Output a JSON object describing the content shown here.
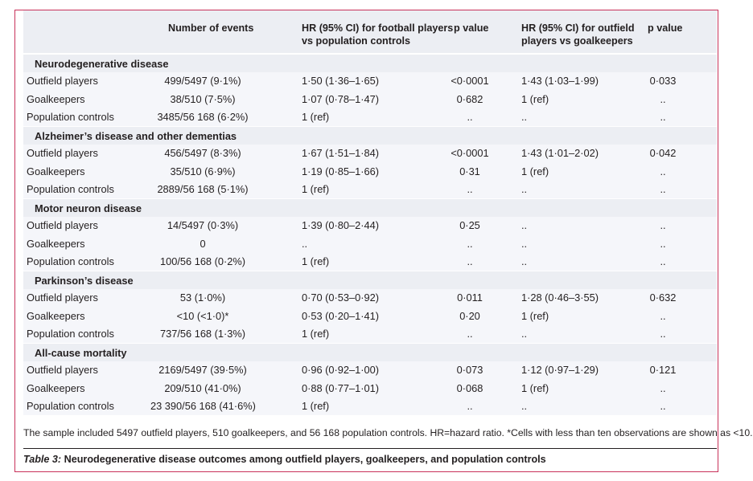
{
  "header": {
    "events": "Number of events",
    "hr_football_line1": "HR (95% CI) for football players",
    "hr_football_line2": "vs population controls",
    "p_value_1": "p value",
    "hr_outfield_line1": "HR (95% CI) for outfield",
    "hr_outfield_line2": "players vs goalkeepers",
    "p_value_2": "p value"
  },
  "groups": [
    {
      "title": "Neurodegenerative disease",
      "rows": [
        {
          "label": "Outfield players",
          "events": "499/5497 (9·1%)",
          "hr1": "1·50 (1·36–1·65)",
          "p1": "<0·0001",
          "hr2": "1·43 (1·03–1·99)",
          "p2": "0·033"
        },
        {
          "label": "Goalkeepers",
          "events": "38/510 (7·5%)",
          "hr1": "1·07 (0·78–1·47)",
          "p1": "0·682",
          "hr2": "1 (ref)",
          "p2": ".."
        },
        {
          "label": "Population controls",
          "events": "3485/56 168 (6·2%)",
          "hr1": "1 (ref)",
          "p1": "..",
          "hr2": "..",
          "p2": ".."
        }
      ]
    },
    {
      "title": "Alzheimer’s disease and other dementias",
      "rows": [
        {
          "label": "Outfield players",
          "events": "456/5497 (8·3%)",
          "hr1": "1·67 (1·51–1·84)",
          "p1": "<0·0001",
          "hr2": "1·43 (1·01–2·02)",
          "p2": "0·042"
        },
        {
          "label": "Goalkeepers",
          "events": "35/510 (6·9%)",
          "hr1": "1·19 (0·85–1·66)",
          "p1": "0·31",
          "hr2": "1 (ref)",
          "p2": ".."
        },
        {
          "label": "Population controls",
          "events": "2889/56 168 (5·1%)",
          "hr1": "1 (ref)",
          "p1": "..",
          "hr2": "..",
          "p2": ".."
        }
      ]
    },
    {
      "title": "Motor neuron disease",
      "rows": [
        {
          "label": "Outfield players",
          "events": "14/5497 (0·3%)",
          "hr1": "1·39 (0·80–2·44)",
          "p1": "0·25",
          "hr2": "..",
          "p2": ".."
        },
        {
          "label": "Goalkeepers",
          "events": "0",
          "hr1": "..",
          "p1": "..",
          "hr2": "..",
          "p2": ".."
        },
        {
          "label": "Population controls",
          "events": "100/56 168 (0·2%)",
          "hr1": "1 (ref)",
          "p1": "..",
          "hr2": "..",
          "p2": ".."
        }
      ]
    },
    {
      "title": "Parkinson’s disease",
      "rows": [
        {
          "label": "Outfield players",
          "events": "53 (1·0%)",
          "hr1": "0·70 (0·53–0·92)",
          "p1": "0·011",
          "hr2": "1·28 (0·46–3·55)",
          "p2": "0·632"
        },
        {
          "label": "Goalkeepers",
          "events": "<10 (<1·0)*",
          "hr1": "0·53 (0·20–1·41)",
          "p1": "0·20",
          "hr2": "1 (ref)",
          "p2": ".."
        },
        {
          "label": "Population controls",
          "events": "737/56 168 (1·3%)",
          "hr1": "1 (ref)",
          "p1": "..",
          "hr2": "..",
          "p2": ".."
        }
      ]
    },
    {
      "title": "All-cause mortality",
      "rows": [
        {
          "label": "Outfield players",
          "events": "2169/5497 (39·5%)",
          "hr1": "0·96 (0·92–1·00)",
          "p1": "0·073",
          "hr2": "1·12 (0·97–1·29)",
          "p2": "0·121"
        },
        {
          "label": "Goalkeepers",
          "events": "209/510 (41·0%)",
          "hr1": "0·88 (0·77–1·01)",
          "p1": "0·068",
          "hr2": "1 (ref)",
          "p2": ".."
        },
        {
          "label": "Population controls",
          "events": "23 390/56 168 (41·6%)",
          "hr1": "1 (ref)",
          "p1": "..",
          "hr2": "..",
          "p2": ".."
        }
      ]
    }
  ],
  "footnote": "The sample included 5497 outfield players, 510 goalkeepers, and 56 168 population controls. HR=hazard ratio. *Cells with less than ten observations are shown as <10.",
  "caption": {
    "table_label": "Table 3:",
    "text": " Neurodegenerative disease outcomes among outfield players, goalkeepers, and population controls"
  }
}
